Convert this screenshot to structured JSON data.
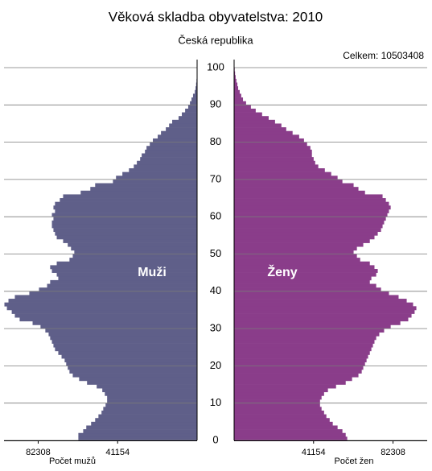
{
  "chart_data": {
    "type": "pyramid",
    "title": "Věková skladba obyvatelstva: 2010",
    "subtitle": "Česká republika",
    "total_label": "Celkem: 10503408",
    "x_label_left": "Počet mužů",
    "x_label_right": "Počet žen",
    "x": [
      0,
      1,
      2,
      3,
      4,
      5,
      6,
      7,
      8,
      9,
      10,
      11,
      12,
      13,
      14,
      15,
      16,
      17,
      18,
      19,
      20,
      21,
      22,
      23,
      24,
      25,
      26,
      27,
      28,
      29,
      30,
      31,
      32,
      33,
      34,
      35,
      36,
      37,
      38,
      39,
      40,
      41,
      42,
      43,
      44,
      45,
      46,
      47,
      48,
      49,
      50,
      51,
      52,
      53,
      54,
      55,
      56,
      57,
      58,
      59,
      60,
      61,
      62,
      63,
      64,
      65,
      66,
      67,
      68,
      69,
      70,
      71,
      72,
      73,
      74,
      75,
      76,
      77,
      78,
      79,
      80,
      81,
      82,
      83,
      84,
      85,
      86,
      87,
      88,
      89,
      90,
      91,
      92,
      93,
      94,
      95,
      96,
      97,
      98,
      99,
      100
    ],
    "series": [
      {
        "name": "Muži",
        "color": "#5f5f89",
        "values": [
          61500,
          61500,
          59000,
          57400,
          54900,
          52800,
          51100,
          49500,
          48600,
          47400,
          46600,
          46600,
          47800,
          49100,
          52000,
          57000,
          61100,
          64400,
          66100,
          67000,
          67800,
          68600,
          70200,
          71900,
          73600,
          74400,
          75200,
          76100,
          76900,
          78600,
          81100,
          85200,
          91900,
          94400,
          96000,
          98500,
          99800,
          97700,
          94400,
          86900,
          81900,
          77700,
          76100,
          71900,
          72700,
          75200,
          76100,
          72700,
          66100,
          64400,
          63600,
          65300,
          67000,
          69400,
          72700,
          73600,
          74400,
          75200,
          75200,
          74400,
          75200,
          73600,
          74400,
          73600,
          71100,
          69400,
          60300,
          55300,
          52800,
          43600,
          42000,
          38700,
          35300,
          32800,
          31200,
          29500,
          28700,
          27000,
          26200,
          24500,
          22900,
          20400,
          18700,
          16200,
          14500,
          12900,
          9600,
          7900,
          6200,
          4600,
          3700,
          2900,
          2100,
          1200,
          800,
          500,
          300,
          200,
          100,
          60,
          40
        ]
      },
      {
        "name": "Ženy",
        "color": "#8a3d8a",
        "values": [
          58600,
          57800,
          56100,
          53600,
          51100,
          49500,
          47800,
          46600,
          45300,
          44500,
          44500,
          45300,
          46600,
          48600,
          52800,
          57800,
          61100,
          64400,
          66100,
          66900,
          67800,
          68600,
          69400,
          70300,
          71100,
          71900,
          72700,
          73600,
          75200,
          77700,
          81100,
          86100,
          90200,
          91900,
          93500,
          94400,
          92700,
          89400,
          85200,
          80200,
          76100,
          73600,
          70300,
          71100,
          73600,
          74400,
          72700,
          70300,
          65300,
          63600,
          61900,
          63600,
          66900,
          70300,
          72700,
          74400,
          76100,
          76900,
          77700,
          78600,
          79400,
          80200,
          81100,
          80200,
          78600,
          76900,
          67800,
          64400,
          61900,
          56100,
          53600,
          50300,
          47000,
          43600,
          42000,
          41200,
          40300,
          40300,
          39500,
          37800,
          36200,
          33700,
          30300,
          27000,
          24500,
          21200,
          17900,
          14500,
          11200,
          8700,
          6200,
          4600,
          3700,
          2900,
          2100,
          1700,
          1200,
          800,
          500,
          300,
          200
        ]
      }
    ],
    "xlim": [
      0,
      100000
    ],
    "xticks": [
      41154,
      82308
    ],
    "ylim": [
      0,
      100
    ],
    "yticks": [
      0,
      10,
      20,
      30,
      40,
      50,
      60,
      70,
      80,
      90,
      100
    ],
    "grid": true
  }
}
